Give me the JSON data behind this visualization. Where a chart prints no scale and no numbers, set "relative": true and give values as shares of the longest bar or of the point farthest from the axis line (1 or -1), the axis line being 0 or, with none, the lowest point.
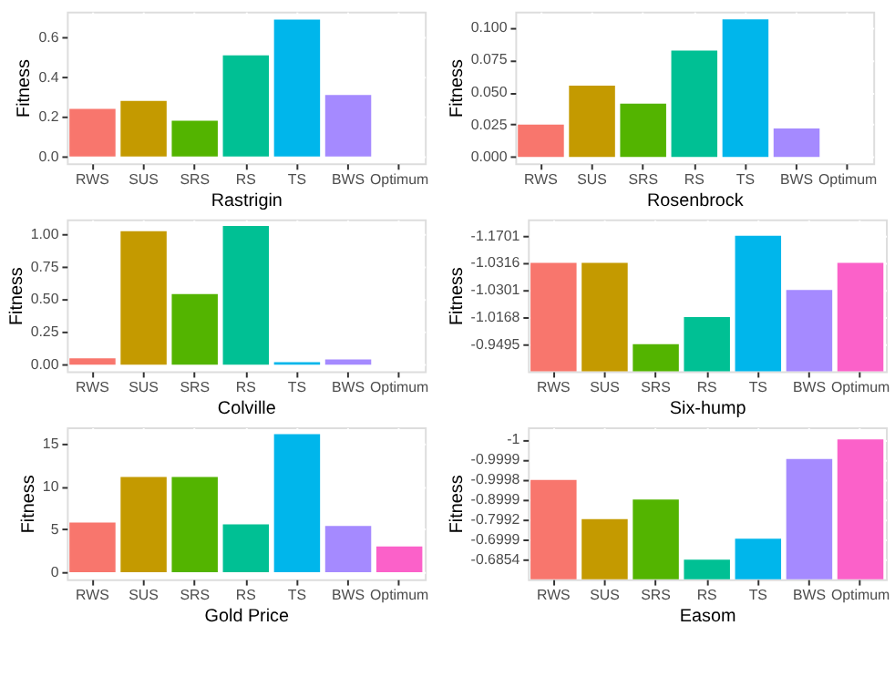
{
  "chart_data": [
    {
      "type": "bar",
      "xlabel": "Rastrigin",
      "ylabel": "Fitness",
      "categories": [
        "RWS",
        "SUS",
        "SRS",
        "RS",
        "TS",
        "BWS",
        "Optimum"
      ],
      "values": [
        0.24,
        0.28,
        0.18,
        0.51,
        0.69,
        0.31,
        0
      ],
      "colors": [
        "#f8766d",
        "#c49a00",
        "#53b400",
        "#00c094",
        "#00b6eb",
        "#a58aff",
        "#fb61c9"
      ],
      "ylim": [
        -0.035,
        0.73
      ],
      "yticks": [
        {
          "value": 0,
          "label": "0.0"
        },
        {
          "value": 0.2,
          "label": "0.2"
        },
        {
          "value": 0.4,
          "label": "0.4"
        },
        {
          "value": 0.6,
          "label": "0.6"
        }
      ],
      "grid": true
    },
    {
      "type": "bar",
      "xlabel": "Rosenbrock",
      "ylabel": "Fitness",
      "categories": [
        "RWS",
        "SUS",
        "SRS",
        "RS",
        "TS",
        "BWS",
        "Optimum"
      ],
      "values": [
        0.025,
        0.055,
        0.041,
        0.082,
        0.106,
        0.022,
        0
      ],
      "colors": [
        "#f8766d",
        "#c49a00",
        "#53b400",
        "#00c094",
        "#00b6eb",
        "#a58aff",
        "#fb61c9"
      ],
      "ylim": [
        -0.005,
        0.112
      ],
      "yticks": [
        {
          "value": 0,
          "label": "0.000"
        },
        {
          "value": 0.025,
          "label": "0.025"
        },
        {
          "value": 0.05,
          "label": "0.050"
        },
        {
          "value": 0.075,
          "label": "0.075"
        },
        {
          "value": 0.1,
          "label": "0.100"
        }
      ],
      "grid": true
    },
    {
      "type": "bar",
      "xlabel": "Colville",
      "ylabel": "Fitness",
      "categories": [
        "RWS",
        "SUS",
        "SRS",
        "RS",
        "TS",
        "BWS",
        "Optimum"
      ],
      "values": [
        0.05,
        1.02,
        0.54,
        1.06,
        0.02,
        0.04,
        0
      ],
      "colors": [
        "#f8766d",
        "#c49a00",
        "#53b400",
        "#00c094",
        "#00b6eb",
        "#a58aff",
        "#fb61c9"
      ],
      "ylim": [
        -0.05,
        1.11
      ],
      "yticks": [
        {
          "value": 0,
          "label": "0.00"
        },
        {
          "value": 0.25,
          "label": "0.25"
        },
        {
          "value": 0.5,
          "label": "0.50"
        },
        {
          "value": 0.75,
          "label": "0.75"
        },
        {
          "value": 1,
          "label": "1.00"
        }
      ],
      "grid": true
    },
    {
      "type": "bar",
      "xlabel": "Six-hump",
      "ylabel": "Fitness",
      "relative": true,
      "categories": [
        "RWS",
        "SUS",
        "SRS",
        "RS",
        "TS",
        "BWS",
        "Optimum"
      ],
      "values": [
        0.8,
        0.8,
        0.2,
        0.4,
        1,
        0.6,
        0.8
      ],
      "colors": [
        "#f8766d",
        "#c49a00",
        "#53b400",
        "#00c094",
        "#00b6eb",
        "#a58aff",
        "#fb61c9"
      ],
      "y_categories": [
        "-1.1701",
        "-1.0316",
        "-1.0301",
        "-1.0168",
        "-0.9495"
      ],
      "grid": true
    },
    {
      "type": "bar",
      "xlabel": "Gold Price",
      "ylabel": "Fitness",
      "categories": [
        "RWS",
        "SUS",
        "SRS",
        "RS",
        "TS",
        "BWS",
        "Optimum"
      ],
      "values": [
        5.8,
        11.1,
        11.1,
        5.6,
        16.1,
        5.4,
        3.0
      ],
      "colors": [
        "#f8766d",
        "#c49a00",
        "#53b400",
        "#00c094",
        "#00b6eb",
        "#a58aff",
        "#fb61c9"
      ],
      "ylim": [
        -0.8,
        16.9
      ],
      "yticks": [
        0,
        5,
        10,
        15
      ],
      "grid": true
    },
    {
      "type": "bar",
      "xlabel": "Easom",
      "ylabel": "Fitness",
      "relative": true,
      "categories": [
        "RWS",
        "SUS",
        "SRS",
        "RS",
        "TS",
        "BWS",
        "Optimum"
      ],
      "values": [
        0.71,
        0.43,
        0.57,
        0.14,
        0.29,
        0.86,
        1
      ],
      "colors": [
        "#f8766d",
        "#c49a00",
        "#53b400",
        "#00c094",
        "#00b6eb",
        "#a58aff",
        "#fb61c9"
      ],
      "y_categories": [
        "-1",
        "-0.9999",
        "-0.9998",
        "-0.8999",
        "-0.7992",
        "-0.6999",
        "-0.6854"
      ],
      "grid": true
    }
  ]
}
